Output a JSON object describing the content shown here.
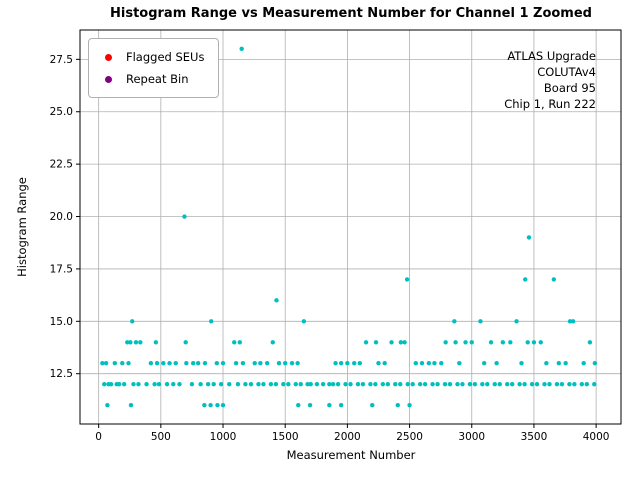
{
  "chart_data": {
    "type": "scatter",
    "title": "Histogram Range vs Measurement Number for Channel 1 Zoomed",
    "xlabel": "Measurement Number",
    "ylabel": "Histogram Range",
    "xlim": [
      -150,
      4200
    ],
    "ylim": [
      10.1,
      28.9
    ],
    "xticks": [
      0,
      500,
      1000,
      1500,
      2000,
      2500,
      3000,
      3500,
      4000
    ],
    "yticks": [
      12.5,
      15.0,
      17.5,
      20.0,
      22.5,
      25.0,
      27.5
    ],
    "grid": true,
    "legend_position": "upper left",
    "point_color": "#00bfbf",
    "points": [
      [
        1150,
        28
      ],
      [
        690,
        20
      ],
      [
        3460,
        19
      ],
      [
        2480,
        17
      ],
      [
        3430,
        17
      ],
      [
        3660,
        17
      ],
      [
        1430,
        16
      ],
      [
        270,
        15
      ],
      [
        905,
        15
      ],
      [
        1650,
        15
      ],
      [
        2860,
        15
      ],
      [
        3070,
        15
      ],
      [
        3360,
        15
      ],
      [
        3790,
        15
      ],
      [
        3815,
        15
      ],
      [
        230,
        14
      ],
      [
        255,
        14
      ],
      [
        300,
        14
      ],
      [
        335,
        14
      ],
      [
        460,
        14
      ],
      [
        700,
        14
      ],
      [
        1090,
        14
      ],
      [
        1135,
        14
      ],
      [
        1400,
        14
      ],
      [
        2150,
        14
      ],
      [
        2230,
        14
      ],
      [
        2355,
        14
      ],
      [
        2430,
        14
      ],
      [
        2460,
        14
      ],
      [
        2790,
        14
      ],
      [
        2870,
        14
      ],
      [
        2950,
        14
      ],
      [
        3000,
        14
      ],
      [
        3155,
        14
      ],
      [
        3250,
        14
      ],
      [
        3310,
        14
      ],
      [
        3450,
        14
      ],
      [
        3500,
        14
      ],
      [
        3555,
        14
      ],
      [
        3950,
        14
      ],
      [
        30,
        13
      ],
      [
        60,
        13
      ],
      [
        130,
        13
      ],
      [
        190,
        13
      ],
      [
        240,
        13
      ],
      [
        420,
        13
      ],
      [
        470,
        13
      ],
      [
        520,
        13
      ],
      [
        570,
        13
      ],
      [
        620,
        13
      ],
      [
        705,
        13
      ],
      [
        760,
        13
      ],
      [
        800,
        13
      ],
      [
        855,
        13
      ],
      [
        950,
        13
      ],
      [
        1000,
        13
      ],
      [
        1105,
        13
      ],
      [
        1160,
        13
      ],
      [
        1255,
        13
      ],
      [
        1300,
        13
      ],
      [
        1355,
        13
      ],
      [
        1450,
        13
      ],
      [
        1500,
        13
      ],
      [
        1555,
        13
      ],
      [
        1600,
        13
      ],
      [
        1905,
        13
      ],
      [
        1950,
        13
      ],
      [
        2000,
        13
      ],
      [
        2055,
        13
      ],
      [
        2100,
        13
      ],
      [
        2250,
        13
      ],
      [
        2300,
        13
      ],
      [
        2550,
        13
      ],
      [
        2600,
        13
      ],
      [
        2655,
        13
      ],
      [
        2700,
        13
      ],
      [
        2755,
        13
      ],
      [
        2900,
        13
      ],
      [
        3100,
        13
      ],
      [
        3200,
        13
      ],
      [
        3400,
        13
      ],
      [
        3600,
        13
      ],
      [
        3700,
        13
      ],
      [
        3755,
        13
      ],
      [
        3900,
        13
      ],
      [
        3990,
        13
      ],
      [
        45,
        12
      ],
      [
        80,
        12
      ],
      [
        100,
        12
      ],
      [
        145,
        12
      ],
      [
        165,
        12
      ],
      [
        205,
        12
      ],
      [
        280,
        12
      ],
      [
        320,
        12
      ],
      [
        385,
        12
      ],
      [
        450,
        12
      ],
      [
        485,
        12
      ],
      [
        550,
        12
      ],
      [
        600,
        12
      ],
      [
        650,
        12
      ],
      [
        750,
        12
      ],
      [
        820,
        12
      ],
      [
        880,
        12
      ],
      [
        925,
        12
      ],
      [
        985,
        12
      ],
      [
        1050,
        12
      ],
      [
        1120,
        12
      ],
      [
        1180,
        12
      ],
      [
        1225,
        12
      ],
      [
        1285,
        12
      ],
      [
        1325,
        12
      ],
      [
        1385,
        12
      ],
      [
        1425,
        12
      ],
      [
        1485,
        12
      ],
      [
        1525,
        12
      ],
      [
        1585,
        12
      ],
      [
        1625,
        12
      ],
      [
        1680,
        12
      ],
      [
        1705,
        12
      ],
      [
        1755,
        12
      ],
      [
        1805,
        12
      ],
      [
        1855,
        12
      ],
      [
        1885,
        12
      ],
      [
        1925,
        12
      ],
      [
        1985,
        12
      ],
      [
        2025,
        12
      ],
      [
        2085,
        12
      ],
      [
        2125,
        12
      ],
      [
        2185,
        12
      ],
      [
        2225,
        12
      ],
      [
        2285,
        12
      ],
      [
        2325,
        12
      ],
      [
        2385,
        12
      ],
      [
        2425,
        12
      ],
      [
        2485,
        12
      ],
      [
        2525,
        12
      ],
      [
        2585,
        12
      ],
      [
        2625,
        12
      ],
      [
        2685,
        12
      ],
      [
        2725,
        12
      ],
      [
        2785,
        12
      ],
      [
        2825,
        12
      ],
      [
        2885,
        12
      ],
      [
        2925,
        12
      ],
      [
        2985,
        12
      ],
      [
        3025,
        12
      ],
      [
        3085,
        12
      ],
      [
        3125,
        12
      ],
      [
        3185,
        12
      ],
      [
        3225,
        12
      ],
      [
        3285,
        12
      ],
      [
        3325,
        12
      ],
      [
        3385,
        12
      ],
      [
        3425,
        12
      ],
      [
        3485,
        12
      ],
      [
        3525,
        12
      ],
      [
        3585,
        12
      ],
      [
        3625,
        12
      ],
      [
        3685,
        12
      ],
      [
        3725,
        12
      ],
      [
        3785,
        12
      ],
      [
        3825,
        12
      ],
      [
        3885,
        12
      ],
      [
        3925,
        12
      ],
      [
        3985,
        12
      ],
      [
        70,
        11
      ],
      [
        260,
        11
      ],
      [
        850,
        11
      ],
      [
        900,
        11
      ],
      [
        955,
        11
      ],
      [
        1000,
        11
      ],
      [
        1605,
        11
      ],
      [
        1700,
        11
      ],
      [
        1855,
        11
      ],
      [
        1950,
        11
      ],
      [
        2200,
        11
      ],
      [
        2405,
        11
      ],
      [
        2500,
        11
      ]
    ]
  },
  "legend": {
    "items": [
      {
        "label": "Flagged SEUs",
        "color": "#ff0000"
      },
      {
        "label": "Repeat Bin",
        "color": "#800080"
      }
    ]
  },
  "annotation": {
    "lines": [
      "ATLAS Upgrade",
      "COLUTAv4",
      "Board 95",
      "Chip 1, Run 222"
    ]
  }
}
